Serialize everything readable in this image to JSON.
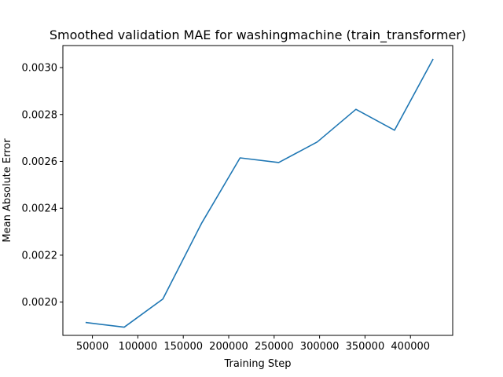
{
  "chart_data": {
    "type": "line",
    "title": "Smoothed validation MAE for washingmachine (train_transformer)",
    "xlabel": "Training Step",
    "ylabel": "Mean Absolute Error",
    "xlim": [
      17500,
      446500
    ],
    "ylim": [
      0.001858,
      0.003094
    ],
    "xticks": [
      50000,
      100000,
      150000,
      200000,
      250000,
      300000,
      350000,
      400000
    ],
    "xtick_labels": [
      "50000",
      "100000",
      "150000",
      "200000",
      "250000",
      "300000",
      "350000",
      "400000"
    ],
    "yticks": [
      0.002,
      0.0022,
      0.0024,
      0.0026,
      0.0028,
      0.003
    ],
    "ytick_labels": [
      "0.0020",
      "0.0022",
      "0.0024",
      "0.0026",
      "0.0028",
      "0.0030"
    ],
    "grid": false,
    "legend": "none",
    "series": [
      {
        "color": "#1f77b4",
        "x": [
          42500,
          85000,
          127500,
          170000,
          212500,
          255000,
          297500,
          340000,
          382500,
          425000
        ],
        "y": [
          0.001913,
          0.001893,
          0.002013,
          0.002335,
          0.002615,
          0.002595,
          0.002683,
          0.002822,
          0.002733,
          0.003037
        ]
      }
    ]
  }
}
